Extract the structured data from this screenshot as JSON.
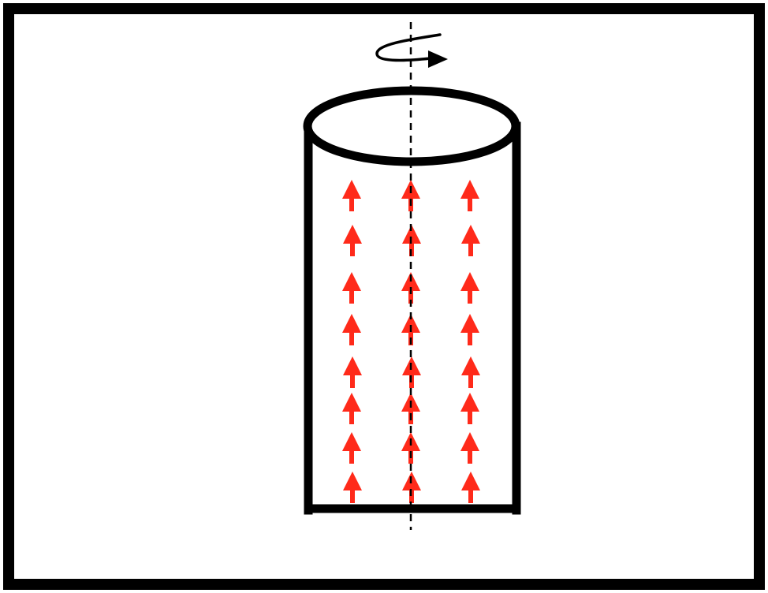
{
  "diagram": {
    "subject": "rotating-cylinder",
    "colors": {
      "background": "#ffffff",
      "outline": "#000000",
      "field_arrows": "#ff2a1a"
    },
    "arrow_direction": "up",
    "arrow_grid": {
      "columns": 3,
      "rows": 8
    },
    "rotation_indicator": "counterclockwise-arrow-icon",
    "axis_style": "dashed"
  }
}
